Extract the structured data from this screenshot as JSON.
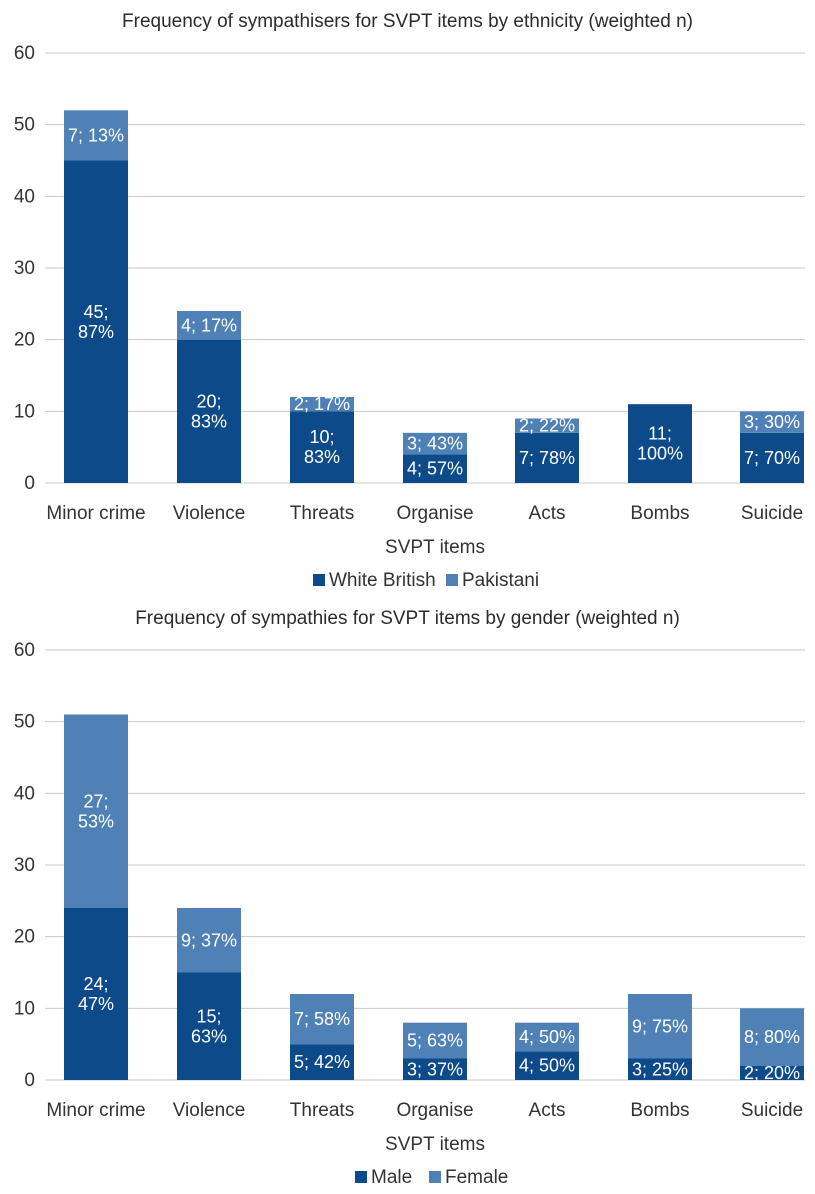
{
  "chart_data": [
    {
      "type": "bar",
      "stacked": true,
      "title": "Frequency of sympathisers for SVPT items by ethnicity (weighted n)",
      "xlabel": "SVPT items",
      "ylabel": "",
      "ylim": [
        0,
        60
      ],
      "yticks": [
        "0",
        "10",
        "20",
        "30",
        "40",
        "50",
        "60"
      ],
      "grid": true,
      "legend_position": "bottom",
      "categories": [
        "Minor crime",
        "Violence",
        "Threats",
        "Organise",
        "Acts",
        "Bombs",
        "Suicide"
      ],
      "series": [
        {
          "name": "White British",
          "color": "#0c4a8a",
          "values": [
            45,
            20,
            10,
            4,
            7,
            11,
            7
          ],
          "labels": [
            [
              "45;",
              "87%"
            ],
            [
              "20;",
              "83%"
            ],
            [
              "10;",
              "83%"
            ],
            [
              "4; 57%"
            ],
            [
              "7; 78%"
            ],
            [
              "11;",
              "100%"
            ],
            [
              "7; 70%"
            ]
          ]
        },
        {
          "name": "Pakistani",
          "color": "#4f81b7",
          "values": [
            7,
            4,
            2,
            3,
            2,
            0,
            3
          ],
          "labels": [
            [
              "7; 13%"
            ],
            [
              "4; 17%"
            ],
            [
              "2; 17%"
            ],
            [
              "3; 43%"
            ],
            [
              "2; 22%"
            ],
            [],
            [
              "3; 30%"
            ]
          ]
        }
      ]
    },
    {
      "type": "bar",
      "stacked": true,
      "title": "Frequency of sympathies for SVPT items by gender (weighted n)",
      "xlabel": "SVPT items",
      "ylabel": "",
      "ylim": [
        0,
        60
      ],
      "yticks": [
        "0",
        "10",
        "20",
        "30",
        "40",
        "50",
        "60"
      ],
      "grid": true,
      "legend_position": "bottom",
      "categories": [
        "Minor crime",
        "Violence",
        "Threats",
        "Organise",
        "Acts",
        "Bombs",
        "Suicide"
      ],
      "series": [
        {
          "name": "Male",
          "color": "#0c4a8a",
          "values": [
            24,
            15,
            5,
            3,
            4,
            3,
            2
          ],
          "labels": [
            [
              "24;",
              "47%"
            ],
            [
              "15;",
              "63%"
            ],
            [
              "5; 42%"
            ],
            [
              "3; 37%"
            ],
            [
              "4; 50%"
            ],
            [
              "3; 25%"
            ],
            [
              "2; 20%"
            ]
          ]
        },
        {
          "name": "Female",
          "color": "#4f81b7",
          "values": [
            27,
            9,
            7,
            5,
            4,
            9,
            8
          ],
          "labels": [
            [
              "27;",
              "53%"
            ],
            [
              "9; 37%"
            ],
            [
              "7; 58%"
            ],
            [
              "5; 63%"
            ],
            [
              "4; 50%"
            ],
            [
              "9; 75%"
            ],
            [
              "8; 80%"
            ]
          ]
        }
      ]
    }
  ]
}
